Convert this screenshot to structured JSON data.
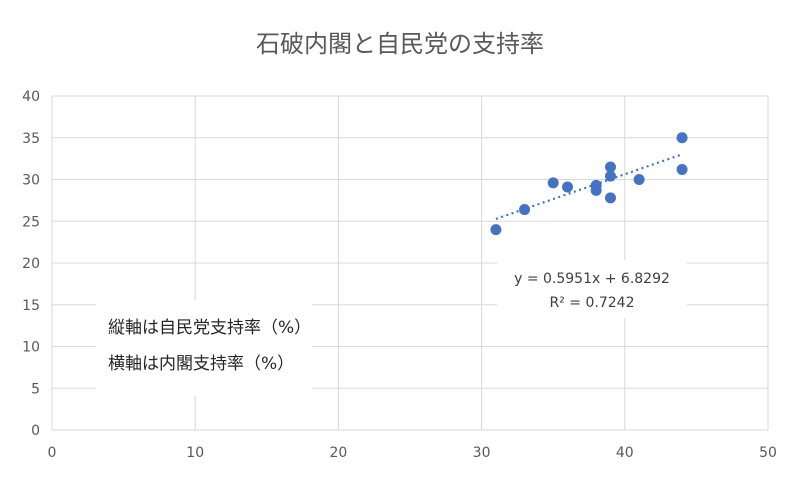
{
  "chart_data": {
    "type": "scatter",
    "title": "石破内閣と自民党の支持率",
    "xlabel": "",
    "ylabel": "",
    "xlim": [
      0,
      50
    ],
    "ylim": [
      0,
      40
    ],
    "xticks": [
      0,
      10,
      20,
      30,
      40,
      50
    ],
    "yticks": [
      0,
      5,
      10,
      15,
      20,
      25,
      30,
      35,
      40
    ],
    "grid": true,
    "points": [
      {
        "x": 31,
        "y": 24.0
      },
      {
        "x": 33,
        "y": 26.4
      },
      {
        "x": 35,
        "y": 29.6
      },
      {
        "x": 36,
        "y": 29.1
      },
      {
        "x": 38,
        "y": 29.3
      },
      {
        "x": 38,
        "y": 28.7
      },
      {
        "x": 39,
        "y": 31.5
      },
      {
        "x": 39,
        "y": 30.4
      },
      {
        "x": 39,
        "y": 27.8
      },
      {
        "x": 41,
        "y": 30.0
      },
      {
        "x": 44,
        "y": 35.0
      },
      {
        "x": 44,
        "y": 31.2
      }
    ],
    "trendline": {
      "type": "linear",
      "slope": 0.5951,
      "intercept": 6.8292,
      "x_range": [
        31,
        44
      ],
      "equation": "y = 0.5951x + 6.8292",
      "r_squared": "R² = 0.7242"
    },
    "annotations": [
      "縦軸は自民党支持率（%）",
      "横軸は内閣支持率（%）"
    ],
    "marker_color": "#4472C4",
    "trend_color": "#4472C4",
    "grid_color": "#D9D9D9"
  }
}
